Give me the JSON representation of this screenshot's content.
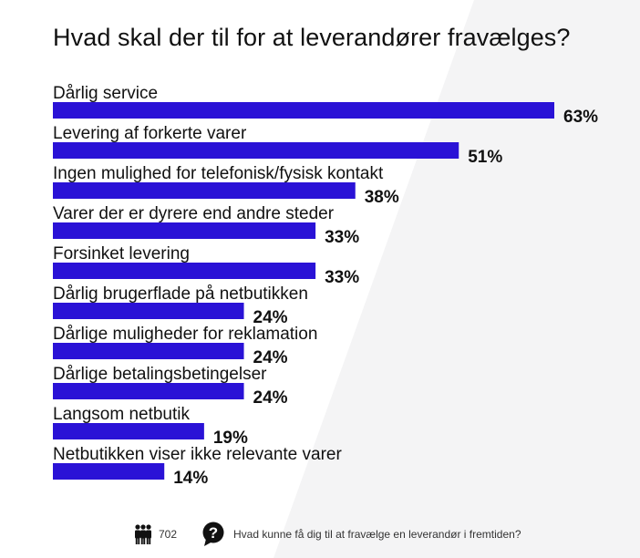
{
  "title": "Hvad skal der til for at leverandører fravælges?",
  "chart_data": {
    "type": "bar",
    "orientation": "horizontal",
    "title": "Hvad skal der til for at leverandører fravælges?",
    "categories": [
      "Dårlig service",
      "Levering af forkerte varer",
      "Ingen mulighed for telefonisk/fysisk kontakt",
      "Varer der er dyrere end andre steder",
      "Forsinket levering",
      "Dårlig brugerflade på netbutikken",
      "Dårlige muligheder for reklamation",
      "Dårlige betalingsbetingelser",
      "Langsom netbutik",
      "Netbutikken viser ikke relevante varer"
    ],
    "values": [
      63,
      51,
      38,
      33,
      33,
      24,
      24,
      24,
      19,
      14
    ],
    "value_labels": [
      "63%",
      "51%",
      "38%",
      "33%",
      "33%",
      "24%",
      "24%",
      "24%",
      "19%",
      "14%"
    ],
    "unit": "%",
    "bar_color": "#2a12d6",
    "grid": false,
    "legend": "none"
  },
  "footer": {
    "respondent_icon": "people-icon",
    "respondents": "702",
    "question_icon": "question-bubble-icon",
    "question": "Hvad kunne få dig til at fravælge en leverandør i fremtiden?"
  }
}
